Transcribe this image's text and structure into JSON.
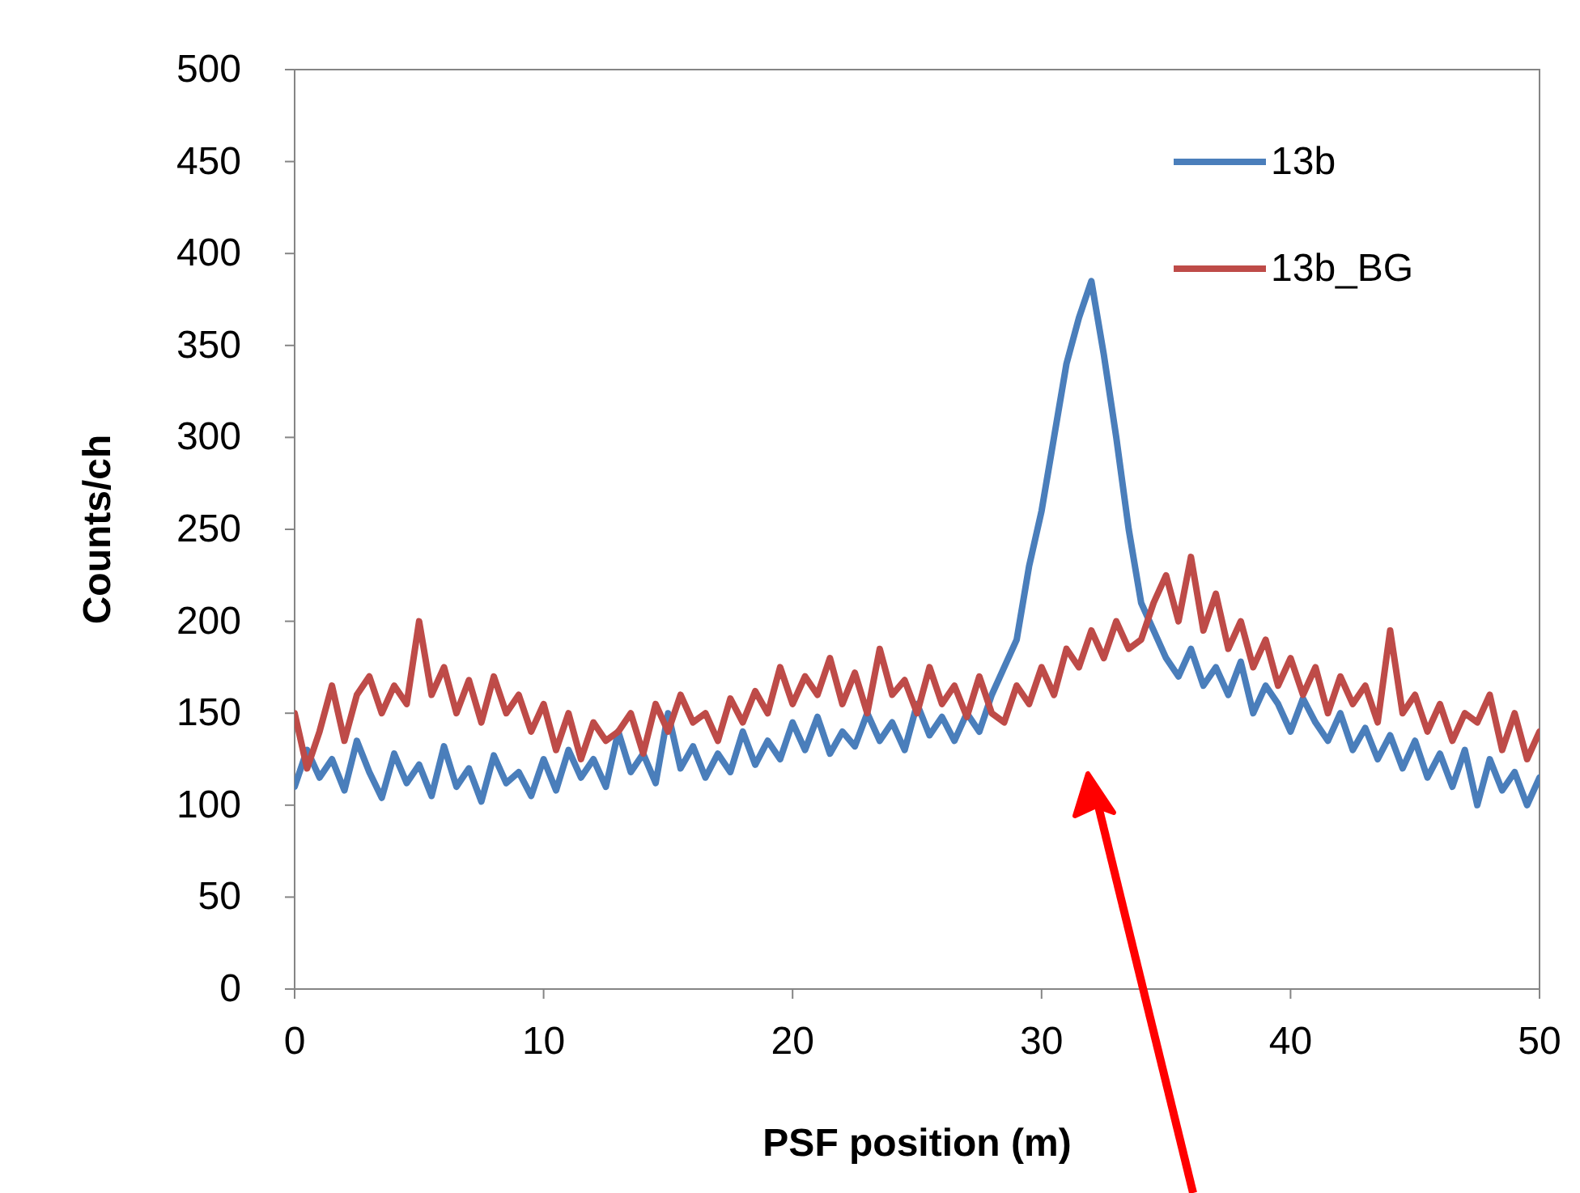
{
  "chart_data": {
    "type": "line",
    "xlabel": "PSF position (m)",
    "ylabel": "Counts/ch",
    "xlim": [
      0,
      50
    ],
    "xticks": [
      0,
      10,
      20,
      30,
      40,
      50
    ],
    "ylim": [
      0,
      500
    ],
    "yticks": [
      0,
      50,
      100,
      150,
      200,
      250,
      300,
      350,
      400,
      450,
      500
    ],
    "grid": false,
    "legend": "top right",
    "marker": "none",
    "line_style": "solid",
    "x": [
      0,
      0.5,
      1,
      1.5,
      2,
      2.5,
      3,
      3.5,
      4,
      4.5,
      5,
      5.5,
      6,
      6.5,
      7,
      7.5,
      8,
      8.5,
      9,
      9.5,
      10,
      10.5,
      11,
      11.5,
      12,
      12.5,
      13,
      13.5,
      14,
      14.5,
      15,
      15.5,
      16,
      16.5,
      17,
      17.5,
      18,
      18.5,
      19,
      19.5,
      20,
      20.5,
      21,
      21.5,
      22,
      22.5,
      23,
      23.5,
      24,
      24.5,
      25,
      25.5,
      26,
      26.5,
      27,
      27.5,
      28,
      28.5,
      29,
      29.5,
      30,
      30.5,
      31,
      31.5,
      32,
      32.5,
      33,
      33.5,
      34,
      34.5,
      35,
      35.5,
      36,
      36.5,
      37,
      37.5,
      38,
      38.5,
      39,
      39.5,
      40,
      40.5,
      41,
      41.5,
      42,
      42.5,
      43,
      43.5,
      44,
      44.5,
      45,
      45.5,
      46,
      46.5,
      47,
      47.5,
      48,
      48.5,
      49,
      49.5,
      50
    ],
    "series": [
      {
        "name": "13b",
        "color": "#4a7ebb",
        "values": [
          110,
          130,
          115,
          125,
          108,
          135,
          118,
          104,
          128,
          112,
          122,
          105,
          132,
          110,
          120,
          102,
          127,
          112,
          118,
          105,
          125,
          108,
          130,
          115,
          125,
          110,
          140,
          118,
          128,
          112,
          150,
          120,
          132,
          115,
          128,
          118,
          140,
          122,
          135,
          125,
          145,
          130,
          148,
          128,
          140,
          132,
          150,
          135,
          145,
          130,
          155,
          138,
          148,
          135,
          150,
          140,
          160,
          175,
          190,
          230,
          260,
          300,
          340,
          365,
          385,
          345,
          300,
          250,
          210,
          195,
          180,
          170,
          185,
          165,
          175,
          160,
          178,
          150,
          165,
          155,
          140,
          158,
          145,
          135,
          150,
          130,
          142,
          125,
          138,
          120,
          135,
          115,
          128,
          110,
          130,
          100,
          125,
          108,
          118,
          100,
          115
        ]
      },
      {
        "name": "13b_BG",
        "color": "#be4b48",
        "values": [
          150,
          120,
          140,
          165,
          135,
          160,
          170,
          150,
          165,
          155,
          200,
          160,
          175,
          150,
          168,
          145,
          170,
          150,
          160,
          140,
          155,
          130,
          150,
          125,
          145,
          135,
          140,
          150,
          128,
          155,
          140,
          160,
          145,
          150,
          135,
          158,
          145,
          162,
          150,
          175,
          155,
          170,
          160,
          180,
          155,
          172,
          150,
          185,
          160,
          168,
          150,
          175,
          155,
          165,
          148,
          170,
          150,
          145,
          165,
          155,
          175,
          160,
          185,
          175,
          195,
          180,
          200,
          185,
          190,
          210,
          225,
          200,
          235,
          195,
          215,
          185,
          200,
          175,
          190,
          165,
          180,
          160,
          175,
          150,
          170,
          155,
          165,
          145,
          195,
          150,
          160,
          140,
          155,
          135,
          150,
          145,
          160,
          130,
          150,
          125,
          140
        ]
      }
    ]
  }
}
